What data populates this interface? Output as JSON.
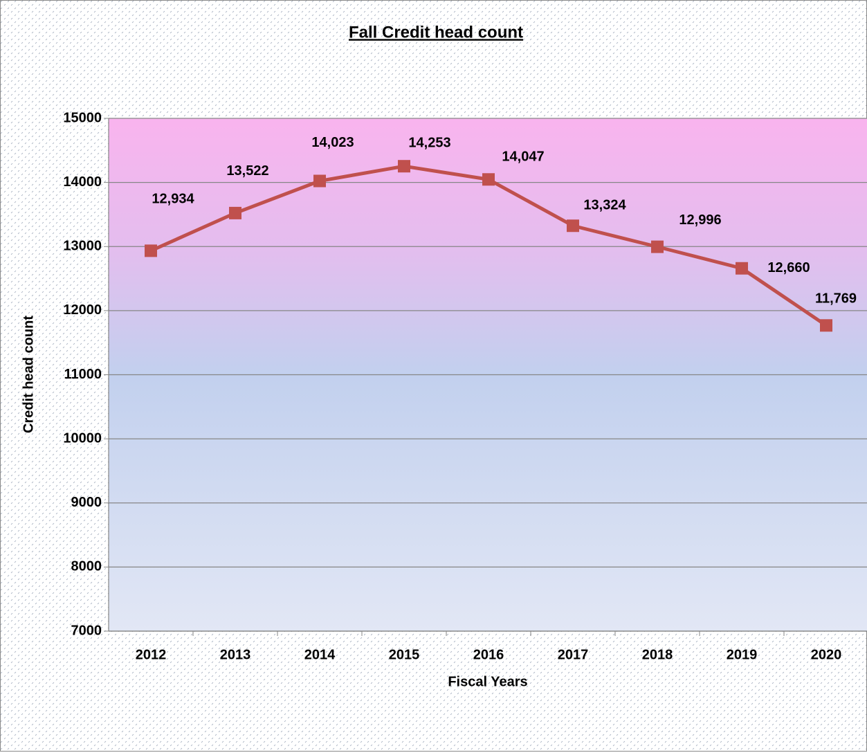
{
  "chart_data": {
    "type": "line",
    "title": "Fall Credit  head count",
    "x_label": "Fiscal Years",
    "y_label": "Credit head count",
    "categories": [
      "2012",
      "2013",
      "2014",
      "2015",
      "2016",
      "2017",
      "2018",
      "2019",
      "2020"
    ],
    "series": [
      {
        "name": "Credit head count",
        "color": "#c0504d",
        "values": [
          12934,
          13522,
          14023,
          14253,
          14047,
          13324,
          12996,
          12660,
          11769
        ],
        "value_labels": [
          "12,934",
          "13,522",
          "14,023",
          "14,253",
          "14,047",
          "13,324",
          "12,996",
          "12,660",
          "11,769"
        ]
      }
    ],
    "ylim": [
      7000,
      15000
    ],
    "yticks": [
      7000,
      8000,
      9000,
      10000,
      11000,
      12000,
      13000,
      14000,
      15000
    ],
    "grid": true
  }
}
